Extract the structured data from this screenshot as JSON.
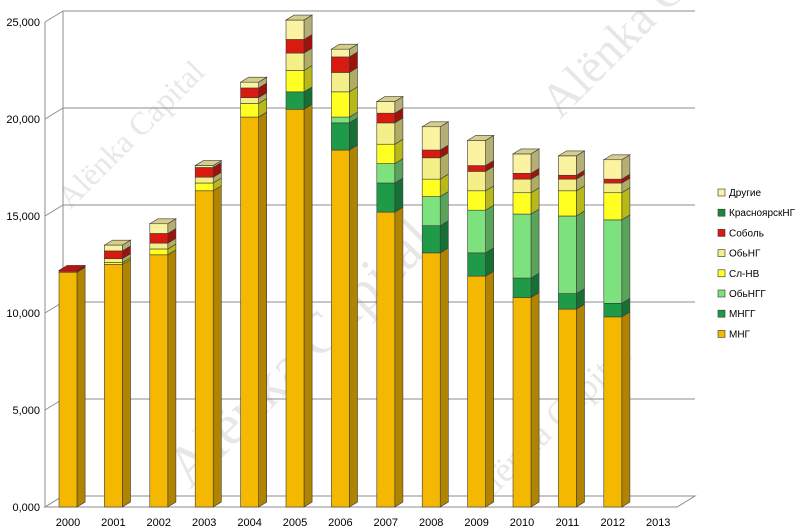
{
  "watermark": "Alёnka Capital",
  "chart_data": {
    "type": "bar",
    "stacked": true,
    "three_d": true,
    "categories": [
      "2000",
      "2001",
      "2002",
      "2003",
      "2004",
      "2005",
      "2006",
      "2007",
      "2008",
      "2009",
      "2010",
      "2011",
      "2012",
      "2013"
    ],
    "ylim": [
      0,
      25000
    ],
    "yticks": [
      0,
      5000,
      10000,
      15000,
      20000,
      25000
    ],
    "ytick_labels": [
      "0,000",
      "5,000",
      "10,000",
      "15,000",
      "20,000",
      "25,000"
    ],
    "grid": true,
    "legend_position": "right",
    "series": [
      {
        "name": "МНГ",
        "color": "#f5b800",
        "values": [
          12100,
          12500,
          13000,
          16300,
          20100,
          20500,
          18400,
          15200,
          13100,
          11900,
          10800,
          10200,
          9800,
          0
        ]
      },
      {
        "name": "МНГГ",
        "color": "#1e9a48",
        "values": [
          0,
          0,
          0,
          0,
          0,
          900,
          1400,
          1500,
          1400,
          1200,
          1000,
          800,
          700,
          0
        ]
      },
      {
        "name": "ОбьНГГ",
        "color": "#7de27d",
        "values": [
          0,
          0,
          0,
          0,
          0,
          0,
          300,
          1000,
          1500,
          2200,
          3300,
          4000,
          4300,
          0
        ]
      },
      {
        "name": "Сл-НВ",
        "color": "#ffff22",
        "values": [
          0,
          100,
          300,
          400,
          700,
          1100,
          1300,
          1000,
          900,
          1000,
          1100,
          1300,
          1400,
          0
        ]
      },
      {
        "name": "ОбьНГ",
        "color": "#f5ef8a",
        "values": [
          0,
          200,
          300,
          300,
          300,
          900,
          1000,
          1100,
          1100,
          1000,
          700,
          600,
          500,
          0
        ]
      },
      {
        "name": "Соболь",
        "color": "#d81a10",
        "values": [
          100,
          400,
          500,
          500,
          500,
          700,
          800,
          500,
          400,
          300,
          300,
          200,
          200,
          0
        ]
      },
      {
        "name": "КрасноярскНГ",
        "color": "#178a3a",
        "values": [
          0,
          0,
          0,
          0,
          0,
          0,
          0,
          0,
          0,
          0,
          0,
          0,
          0,
          0
        ]
      },
      {
        "name": "Другие",
        "color": "#fbf2a2",
        "values": [
          0,
          300,
          500,
          100,
          300,
          1000,
          400,
          600,
          1200,
          1300,
          1000,
          1000,
          1000,
          0
        ]
      }
    ],
    "legend_order": [
      "Другие",
      "КрасноярскНГ",
      "Соболь",
      "ОбьНГ",
      "Сл-НВ",
      "ОбьНГГ",
      "МНГГ",
      "МНГ"
    ]
  }
}
